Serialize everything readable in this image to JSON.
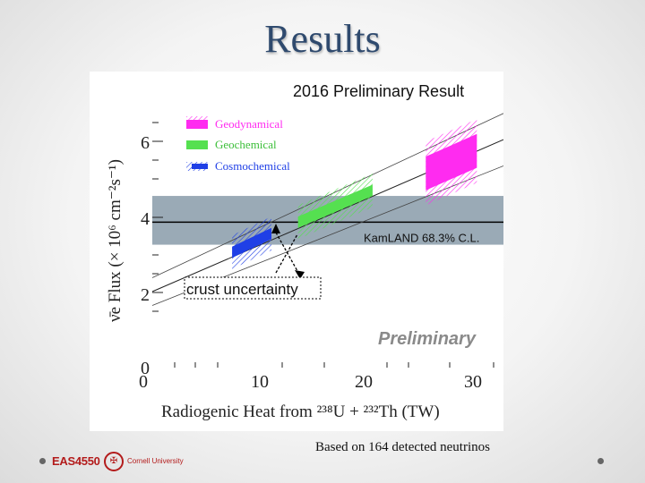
{
  "slide": {
    "title": "Results",
    "caption": "Based on 164 detected neutrinos",
    "course": "EAS4550",
    "university": "Cornell University"
  },
  "chart_data": {
    "type": "line",
    "title": "2016 Preliminary Result",
    "watermark": "Preliminary",
    "xlabel": "Radiogenic Heat from ²³⁸U + ²³²Th (TW)",
    "ylabel": "ν̄e Flux (× 10⁶ cm⁻²s⁻¹)",
    "xlim": [
      0,
      33
    ],
    "ylim": [
      0,
      7.2
    ],
    "x_ticks": [
      "0",
      "10",
      "20",
      "30"
    ],
    "y_ticks": [
      "0",
      "2",
      "4",
      "6"
    ],
    "grid": false,
    "legend_position": "top-left",
    "legend": [
      {
        "name": "Geodynamical",
        "color": "#ff2bf0"
      },
      {
        "name": "Geochemical",
        "color": "#55e050"
      },
      {
        "name": "Cosmochemical",
        "color": "#1f3fe6"
      }
    ],
    "kamland": {
      "label": "KamLAND 68.3% C.L.",
      "central": 3.9,
      "low": 3.3,
      "high": 4.6,
      "color": "#9aaab6"
    },
    "trend": {
      "x": [
        0,
        33
      ],
      "y_mid": [
        2.05,
        6.1
      ],
      "y_low": [
        1.68,
        5.4
      ],
      "y_high": [
        2.42,
        6.8
      ]
    },
    "models": [
      {
        "name": "Cosmochemical",
        "x": [
          7.5,
          11.2
        ],
        "y_mid": [
          3.1,
          3.6
        ],
        "halfwidth_inner": 0.15,
        "halfwidth_outer": 0.45
      },
      {
        "name": "Geochemical",
        "x": [
          13.7,
          20.7
        ],
        "y_mid": [
          3.9,
          4.75
        ],
        "halfwidth_inner": 0.15,
        "halfwidth_outer": 0.45
      },
      {
        "name": "Geodynamical",
        "x": [
          25.7,
          30.5
        ],
        "y_mid": [
          5.2,
          5.8
        ],
        "halfwidth_inner": 0.45,
        "halfwidth_outer": 0.85
      }
    ],
    "annotation": {
      "text": "crust uncertainty"
    }
  }
}
